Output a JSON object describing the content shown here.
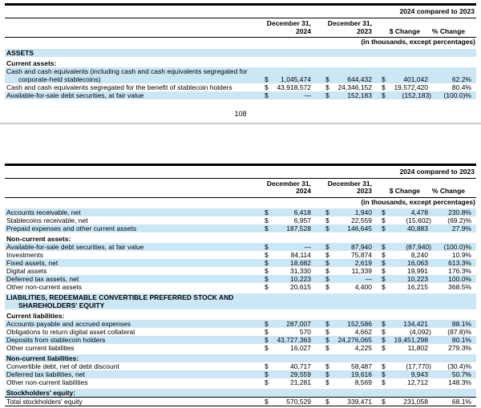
{
  "page": {
    "footer_page_number": "108"
  },
  "colors": {
    "row_highlight": "#cbe7f5",
    "rule": "#000000",
    "page_divider": "#c9c9c9"
  },
  "tables": [
    {
      "header": {
        "compared_label": "2024 compared to 2023",
        "col_2024_line1": "December 31,",
        "col_2024_line2": "2024",
        "col_2023_line1": "December 31,",
        "col_2023_line2": "2023",
        "col_dollar_change": "$ Change",
        "col_percent_change": "% Change",
        "units_note": "(in thousands, except percentages)"
      },
      "rows": [
        {
          "label": "ASSETS",
          "bold": true,
          "shade": true
        },
        {
          "label": "Current assets:",
          "bold": true,
          "gap_before": true
        },
        {
          "label": "Cash and cash equivalents (including cash and cash equivalents segregated for",
          "label2": "corporate-held stablecoins)",
          "shade": true,
          "vals": [
            "1,045,474",
            "644,432",
            "401,042",
            "62.2%"
          ]
        },
        {
          "label": "Cash and cash equivalents segregated for the benefit of stablecoin holders",
          "vals": [
            "43,918,572",
            "24,346,152",
            "19,572,420",
            "80.4%"
          ]
        },
        {
          "label": "Available-for-sale debt securities, at fair value",
          "shade": true,
          "vals": [
            "—",
            "152,183",
            "(152,183)",
            "(100.0)%"
          ]
        }
      ]
    },
    {
      "header": {
        "compared_label": "2024 compared to 2023",
        "col_2024_line1": "December 31,",
        "col_2024_line2": "2024",
        "col_2023_line1": "December 31,",
        "col_2023_line2": "2023",
        "col_dollar_change": "$ Change",
        "col_percent_change": "% Change",
        "units_note": "(in thousands, except percentages)"
      },
      "rows": [
        {
          "label": "Accounts receivable, net",
          "shade": true,
          "vals": [
            "6,418",
            "1,940",
            "4,478",
            "230.8%"
          ]
        },
        {
          "label": "Stablecoins receivable, net",
          "vals": [
            "6,957",
            "22,559",
            "(15,602)",
            "(69.2)%"
          ]
        },
        {
          "label": "Prepaid expenses and other current assets",
          "shade": true,
          "vals": [
            "187,528",
            "146,645",
            "40,883",
            "27.9%"
          ]
        },
        {
          "label": "Non-current assets:",
          "bold": true,
          "gap_before": true
        },
        {
          "label": "Available-for-sale debt securities, at fair value",
          "shade": true,
          "vals": [
            "—",
            "87,940",
            "(87,940)",
            "(100.0)%"
          ]
        },
        {
          "label": "Investments",
          "vals": [
            "84,114",
            "75,874",
            "8,240",
            "10.9%"
          ]
        },
        {
          "label": "Fixed assets, net",
          "shade": true,
          "vals": [
            "18,682",
            "2,619",
            "16,063",
            "613.3%"
          ]
        },
        {
          "label": "Digital assets",
          "vals": [
            "31,330",
            "11,339",
            "19,991",
            "176.3%"
          ]
        },
        {
          "label": "Deferred tax assets, net",
          "shade": true,
          "vals": [
            "10,223",
            "—",
            "10,223",
            "100.0%"
          ]
        },
        {
          "label": "Other non-current assets",
          "vals": [
            "20,615",
            "4,400",
            "16,215",
            "368.5%"
          ]
        },
        {
          "label": "LIABILITIES, REDEEMABLE CONVERTIBLE PREFERRED STOCK AND",
          "label2": "SHAREHOLDERS' EQUITY",
          "bold": true,
          "shade": true,
          "gap_before": true
        },
        {
          "label": "Current liabilities:",
          "bold": true,
          "gap_before": true
        },
        {
          "label": "Accounts payable and accrued expenses",
          "shade": true,
          "vals": [
            "287,007",
            "152,586",
            "134,421",
            "88.1%"
          ]
        },
        {
          "label": "Obligations to return digital asset collateral",
          "vals": [
            "570",
            "4,662",
            "(4,092)",
            "(87.8)%"
          ]
        },
        {
          "label": "Deposits from stablecoin holders",
          "shade": true,
          "vals": [
            "43,727,363",
            "24,276,065",
            "19,451,298",
            "80.1%"
          ]
        },
        {
          "label": "Other current liabilities",
          "vals": [
            "16,027",
            "4,225",
            "11,802",
            "279.3%"
          ]
        },
        {
          "label": "Non-current liabilities:",
          "bold": true,
          "shade": true,
          "gap_before": true
        },
        {
          "label": "Convertible debt, net of debt discount",
          "vals": [
            "40,717",
            "58,487",
            "(17,770)",
            "(30.4)%"
          ]
        },
        {
          "label": "Deferred tax liabilities, net",
          "shade": true,
          "vals": [
            "29,559",
            "19,616",
            "9,943",
            "50.7%"
          ]
        },
        {
          "label": "Other non-current liabilities",
          "vals": [
            "21,281",
            "8,569",
            "12,712",
            "148.3%"
          ]
        },
        {
          "label": "Stockholders' equity:",
          "bold": true,
          "shade": true,
          "gap_before": true
        },
        {
          "label": "Total stockholders' equity",
          "vals": [
            "570,529",
            "339,471",
            "231,058",
            "68.1%"
          ],
          "total": true
        }
      ]
    }
  ]
}
